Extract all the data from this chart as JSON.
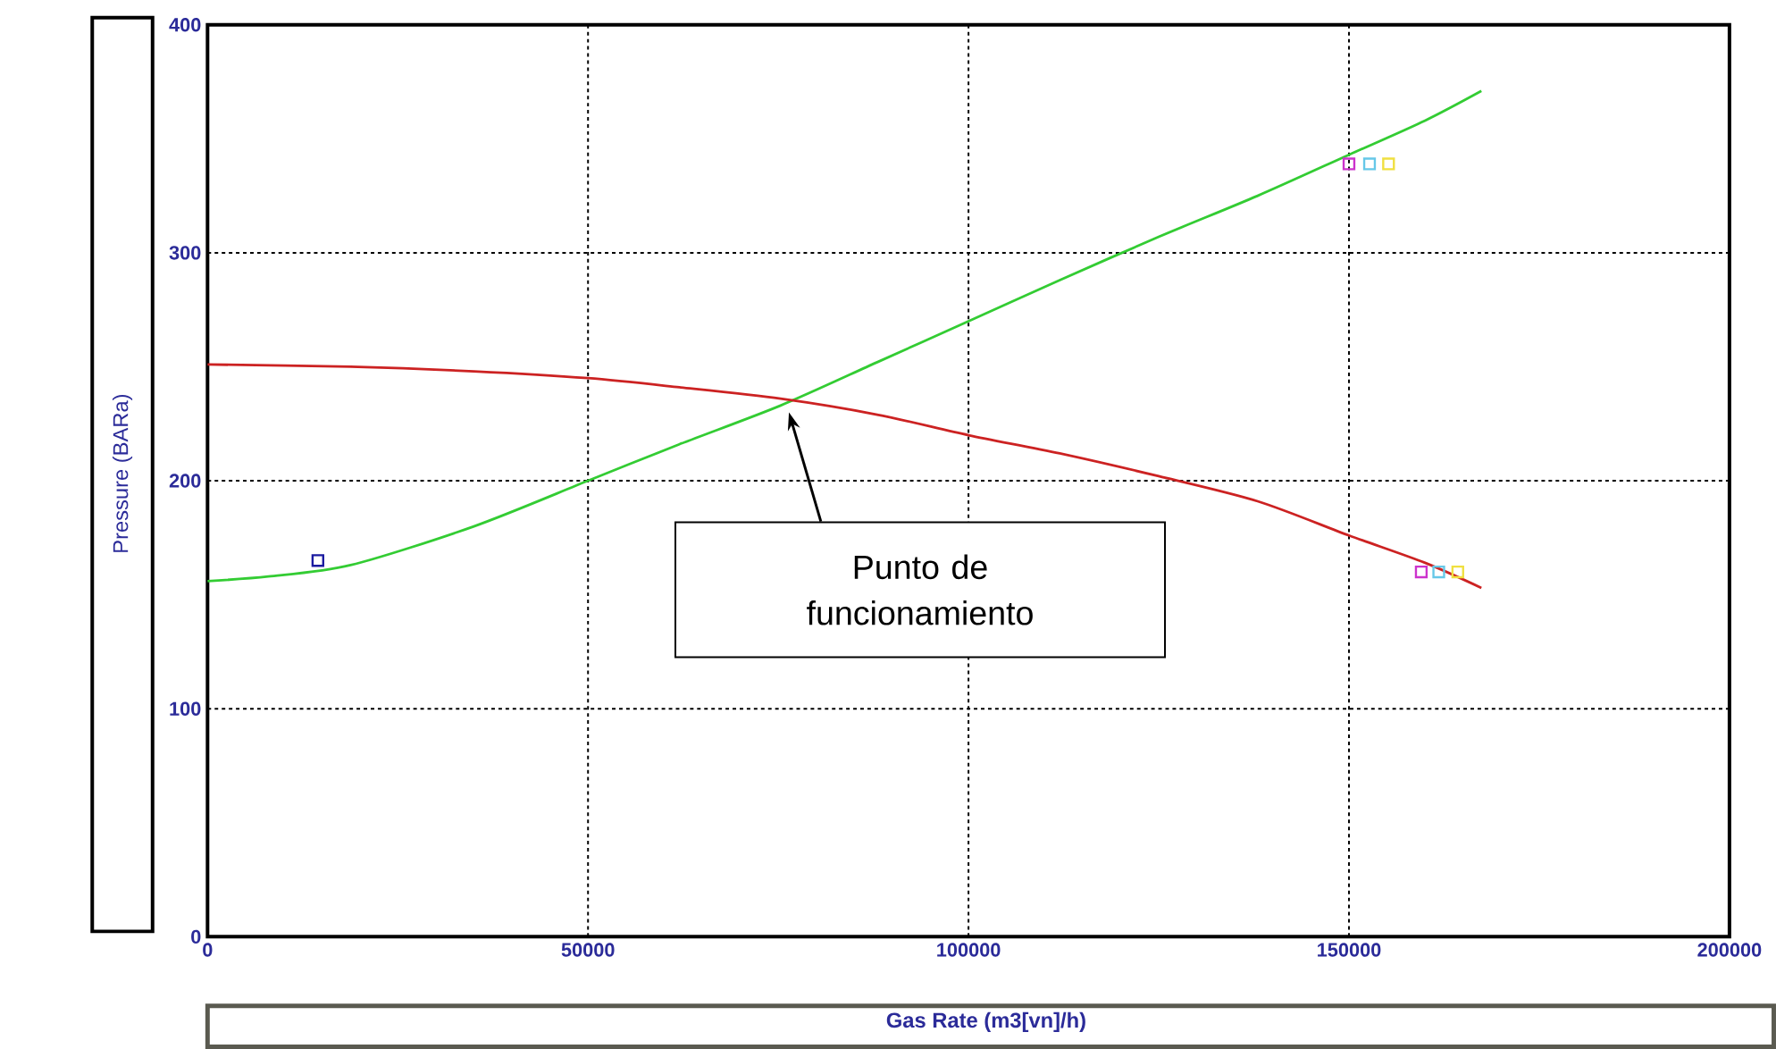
{
  "chart_data": {
    "type": "line",
    "xlabel": "Gas Rate  (m3[vn]/h)",
    "ylabel": "Pressure  (BARa)",
    "xlim": [
      0,
      200000
    ],
    "xticks": [
      0,
      50000,
      100000,
      150000,
      200000
    ],
    "ylim": [
      0,
      400
    ],
    "yticks": [
      0,
      100,
      200,
      300,
      400
    ],
    "grid": true,
    "line_style": "solid",
    "series": [
      {
        "color": "#33cc33",
        "x": [
          0,
          8000,
          18800,
          35000,
          50000,
          62000,
          75300,
          88000,
          100000,
          112000,
          125000,
          138000,
          150000,
          160000,
          167400
        ],
        "values": [
          156,
          158,
          163,
          180,
          200,
          216,
          233,
          252,
          270,
          288,
          307,
          325,
          343,
          358,
          371
        ]
      },
      {
        "color": "#cc2222",
        "x": [
          0,
          18800,
          35000,
          50000,
          62000,
          75300,
          88000,
          100000,
          112000,
          125000,
          138000,
          150000,
          160000,
          167400
        ],
        "values": [
          251,
          250,
          248,
          245,
          241,
          236,
          229,
          220,
          212,
          202,
          191,
          176,
          164,
          153
        ]
      },
      {
        "type": "scatter",
        "marker": "square",
        "color": "#1a1aa0",
        "x": [
          14500
        ],
        "values": [
          165
        ]
      },
      {
        "type": "scatter",
        "marker": "square",
        "color": "#cc33cc",
        "x": [
          150000,
          159500
        ],
        "values": [
          339,
          160
        ]
      },
      {
        "type": "scatter",
        "marker": "square",
        "color": "#66c8e8",
        "x": [
          152700,
          161800
        ],
        "values": [
          339,
          160
        ]
      },
      {
        "type": "scatter",
        "marker": "square",
        "color": "#f0e040",
        "x": [
          155200,
          164300
        ],
        "values": [
          339,
          160
        ]
      }
    ],
    "annotations": [
      "Punto de funcionamiento"
    ]
  }
}
